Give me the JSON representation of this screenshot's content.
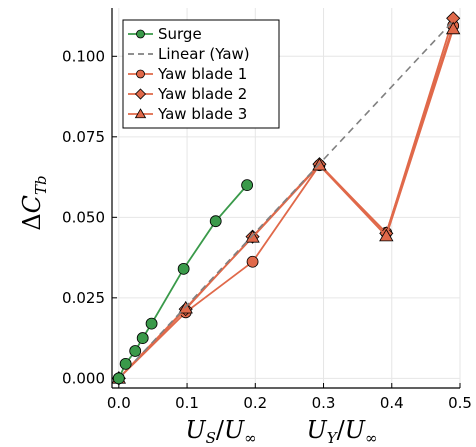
{
  "chart_data": {
    "type": "line",
    "xlabel": {
      "main1": "U",
      "sub1": "S",
      "slash1": "/",
      "main2": "U",
      "sub2": "∞",
      "main3": "U",
      "sub3": "Y",
      "slash2": "/",
      "main4": "U",
      "sub4": "∞"
    },
    "ylabel": {
      "prefix": "Δ",
      "main": "C",
      "sub": "Tb"
    },
    "xlim": [
      -0.01,
      0.5
    ],
    "ylim": [
      -0.003,
      0.115
    ],
    "xticks": [
      0.0,
      0.1,
      0.2,
      0.3,
      0.4,
      0.5
    ],
    "xtick_labels": [
      "0.0",
      "0.1",
      "0.2",
      "0.3",
      "0.4",
      "0.5"
    ],
    "yticks": [
      0.0,
      0.025,
      0.05,
      0.075,
      0.1
    ],
    "ytick_labels": [
      "0.000",
      "0.025",
      "0.050",
      "0.075",
      "0.100"
    ],
    "grid": true,
    "legend_position": "top-left",
    "series": [
      {
        "name": "Surge",
        "color": "#3a9a4a",
        "marker": "circle",
        "line": "solid",
        "x": [
          0.0,
          0.01,
          0.024,
          0.035,
          0.048,
          0.095,
          0.142,
          0.188
        ],
        "y": [
          0.0,
          0.0045,
          0.0085,
          0.0125,
          0.017,
          0.034,
          0.0488,
          0.06
        ]
      },
      {
        "name": "Linear (Yaw)",
        "color": "#808080",
        "marker": "none",
        "line": "dashed",
        "x": [
          0.0,
          0.49
        ],
        "y": [
          0.0,
          0.111
        ]
      },
      {
        "name": "Yaw blade 1",
        "color": "#e0694a",
        "marker": "circle",
        "line": "solid",
        "x": [
          0.0,
          0.098,
          0.196,
          0.294,
          0.392,
          0.49
        ],
        "y": [
          0.0,
          0.0205,
          0.0362,
          0.0662,
          0.0452,
          0.1095
        ]
      },
      {
        "name": "Yaw blade 2",
        "color": "#e0694a",
        "marker": "diamond",
        "line": "solid",
        "x": [
          0.0,
          0.098,
          0.196,
          0.294,
          0.392,
          0.49
        ],
        "y": [
          0.0,
          0.0215,
          0.044,
          0.0665,
          0.045,
          0.1118
        ]
      },
      {
        "name": "Yaw blade 3",
        "color": "#e0694a",
        "marker": "triangle",
        "line": "solid",
        "x": [
          0.0,
          0.098,
          0.196,
          0.294,
          0.392,
          0.49
        ],
        "y": [
          0.0,
          0.0218,
          0.0438,
          0.0662,
          0.0442,
          0.1085
        ]
      }
    ]
  }
}
